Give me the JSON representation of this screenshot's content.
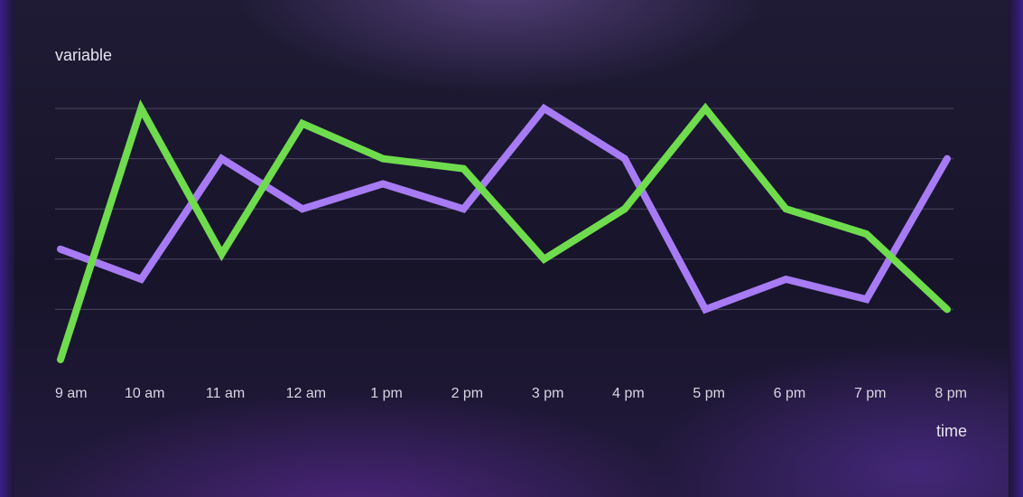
{
  "chart_data": {
    "type": "line",
    "title": "",
    "xlabel": "time",
    "ylabel": "variable",
    "categories": [
      "9 am",
      "10 am",
      "11 am",
      "12 am",
      "1 pm",
      "2 pm",
      "3 pm",
      "4 pm",
      "5 pm",
      "6 pm",
      "7 pm",
      "8 pm"
    ],
    "ylim": [
      0,
      5.7
    ],
    "grid": true,
    "series": [
      {
        "color": "#a77bf3",
        "values": [
          2.2,
          1.6,
          4.0,
          3.0,
          3.5,
          3.0,
          5.0,
          4.0,
          1.0,
          1.6,
          1.2,
          4.0
        ]
      },
      {
        "color": "#6fdc4e",
        "values": [
          0.0,
          5.0,
          2.1,
          4.7,
          4.0,
          3.8,
          2.0,
          3.0,
          5.0,
          3.0,
          2.5,
          1.0
        ]
      }
    ]
  }
}
